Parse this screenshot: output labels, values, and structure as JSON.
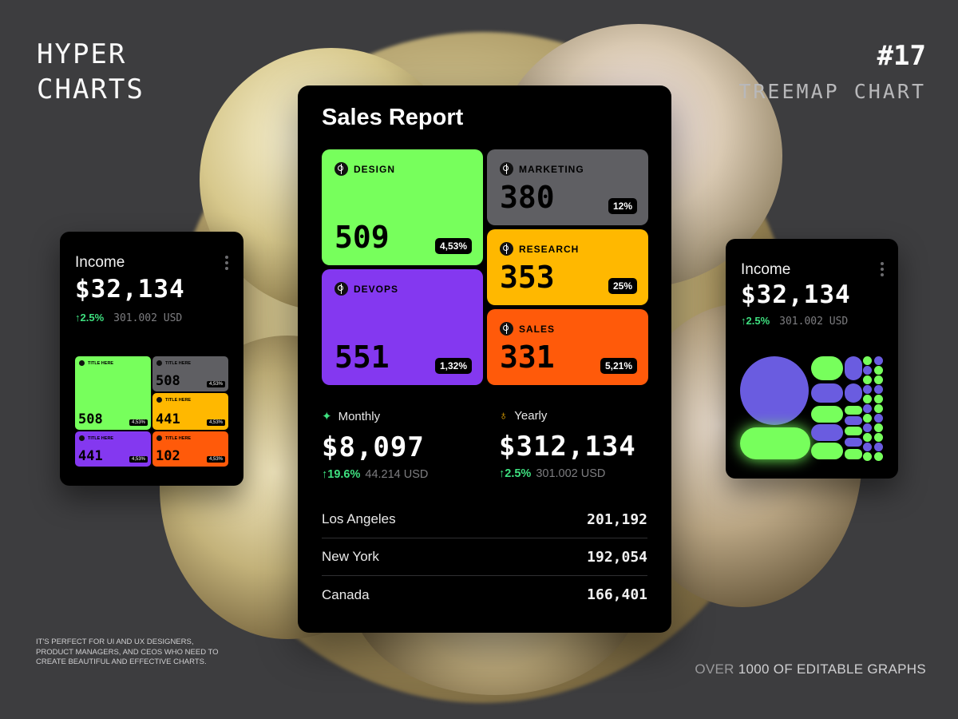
{
  "branding": {
    "title_line1": "HYPER",
    "title_line2": "CHARTS",
    "number": "#17",
    "chart_name": "TREEMAP CHART",
    "tagline": "IT'S PERFECT FOR UI AND UX DESIGNERS, PRODUCT MANAGERS, AND CEOS WHO NEED TO CREATE BEAUTIFUL AND EFFECTIVE CHARTS.",
    "footer_prefix": "OVER ",
    "footer_rest": "1000 OF EDITABLE GRAPHS"
  },
  "colors": {
    "green": "#77ff5c",
    "gray": "#5f5f63",
    "yellow": "#ffb800",
    "purple": "#8438f0",
    "orange": "#ff5a0a",
    "bubble_purple": "#6a5ce0",
    "positive": "#3ee07f"
  },
  "sales_report": {
    "title": "Sales Report",
    "monthly": {
      "label": "Monthly",
      "icon": "sparkle-icon",
      "value": "$8,097",
      "change": "↑19.6%",
      "usd": "44.214 USD"
    },
    "yearly": {
      "label": "Yearly",
      "icon": "medal-icon",
      "value": "$312,134",
      "change": "↑2.5%",
      "usd": "301.002 USD"
    },
    "locations": [
      {
        "name": "Los Angeles",
        "value": "201,192"
      },
      {
        "name": "New York",
        "value": "192,054"
      },
      {
        "name": "Canada",
        "value": "166,401"
      }
    ]
  },
  "chart_data": [
    {
      "type": "treemap",
      "title": "Sales Report",
      "items": [
        {
          "name": "DESIGN",
          "value": 509,
          "percent": "4,53%",
          "color": "#77ff5c"
        },
        {
          "name": "MARKETING",
          "value": 380,
          "percent": "12%",
          "color": "#5f5f63"
        },
        {
          "name": "RESEARCH",
          "value": 353,
          "percent": "25%",
          "color": "#ffb800"
        },
        {
          "name": "DEVOPS",
          "value": 551,
          "percent": "1,32%",
          "color": "#8438f0"
        },
        {
          "name": "SALES",
          "value": 331,
          "percent": "5,21%",
          "color": "#ff5a0a"
        }
      ]
    },
    {
      "type": "treemap",
      "title": "Income",
      "items": [
        {
          "name": "TITLE HERE",
          "value": 508,
          "percent": "4,53%",
          "color": "#77ff5c"
        },
        {
          "name": "TITLE HERE",
          "value": 508,
          "percent": "4,53%",
          "color": "#5f5f63"
        },
        {
          "name": "TITLE HERE",
          "value": 441,
          "percent": "4,53%",
          "color": "#ffb800"
        },
        {
          "name": "TITLE HERE",
          "value": 441,
          "percent": "4,53%",
          "color": "#8438f0"
        },
        {
          "name": "TITLE HERE",
          "value": 102,
          "percent": "4,53%",
          "color": "#ff5a0a"
        }
      ]
    }
  ],
  "income_left": {
    "title": "Income",
    "value": "$32,134",
    "change": "↑2.5%",
    "usd": "301.002 USD"
  },
  "income_right": {
    "title": "Income",
    "value": "$32,134",
    "change": "↑2.5%",
    "usd": "301.002 USD"
  }
}
